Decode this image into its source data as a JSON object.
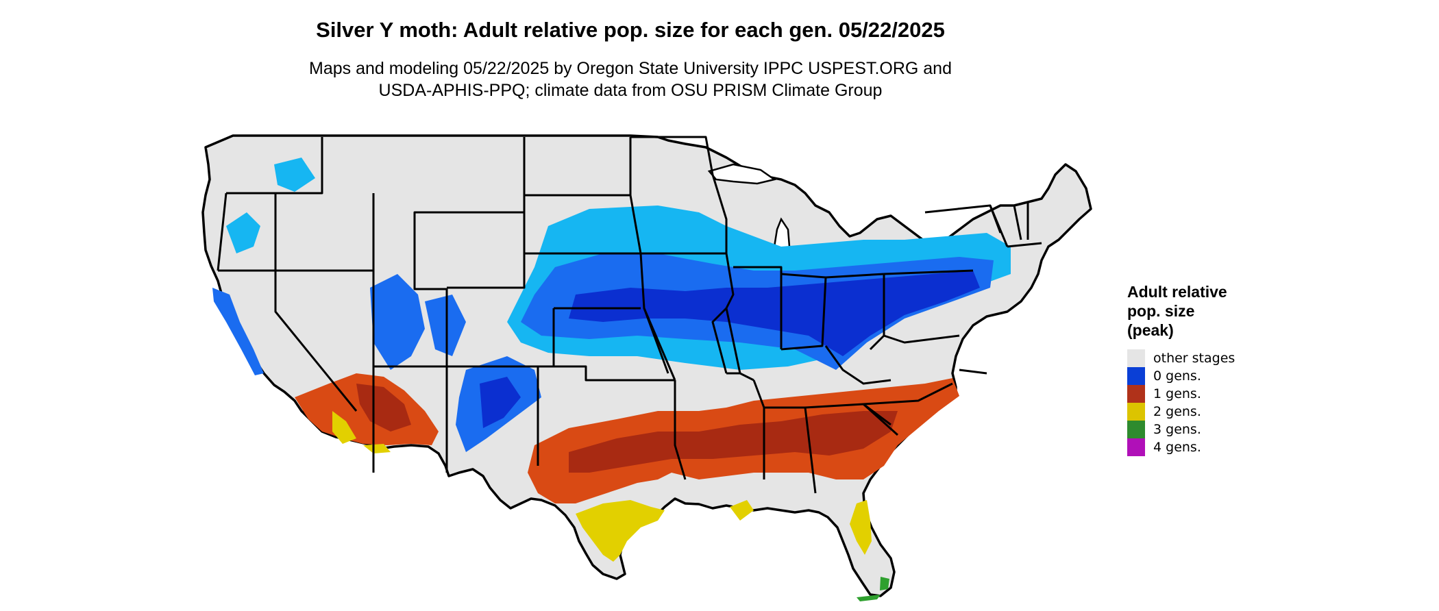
{
  "title": "Silver Y moth: Adult relative pop. size for each gen. 05/22/2025",
  "subtitle_line1": "Maps and modeling 05/22/2025 by Oregon State University IPPC USPEST.ORG and",
  "subtitle_line2": "USDA-APHIS-PPQ; climate data from OSU PRISM Climate Group",
  "legend": {
    "title": "Adult relative\npop. size\n(peak)",
    "items": [
      {
        "label": "other stages",
        "color": "#e5e5e5"
      },
      {
        "label": "0 gens.",
        "color": "#0a3fd6"
      },
      {
        "label": "1 gens.",
        "color": "#b0321a"
      },
      {
        "label": "2 gens.",
        "color": "#dcc400"
      },
      {
        "label": "3 gens.",
        "color": "#2e8b2e"
      },
      {
        "label": "4 gens.",
        "color": "#b010b8"
      }
    ]
  },
  "colors": {
    "land": "#e5e5e5",
    "blue_light": "#16b6f2",
    "blue_mid": "#1a6cf0",
    "blue_dark": "#0b2fd0",
    "red": "#d94a14",
    "red_dark": "#a82a12",
    "yellow": "#e2d000",
    "green": "#2ea02e",
    "border": "#000000"
  }
}
